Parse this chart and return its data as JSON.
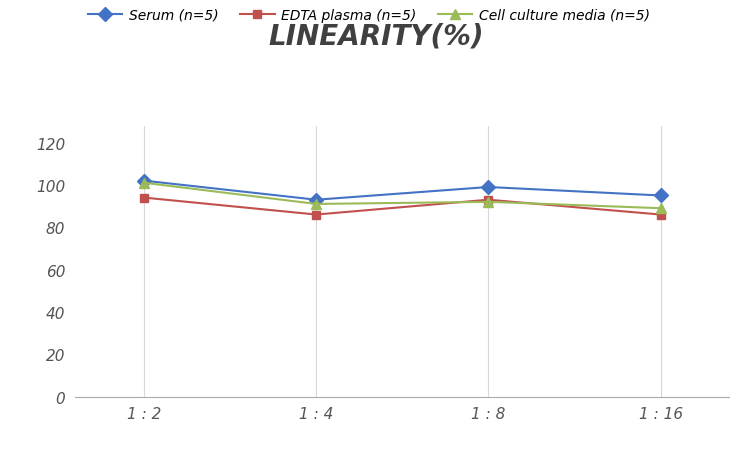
{
  "title": "LINEARITY(%)",
  "x_labels": [
    "1 : 2",
    "1 : 4",
    "1 : 8",
    "1 : 16"
  ],
  "x_positions": [
    0,
    1,
    2,
    3
  ],
  "series": [
    {
      "label": "Serum (n=5)",
      "values": [
        102,
        93,
        99,
        95
      ],
      "color": "#4472C4",
      "marker": "D",
      "marker_size": 7
    },
    {
      "label": "EDTA plasma (n=5)",
      "values": [
        94,
        86,
        93,
        86
      ],
      "color": "#C0504D",
      "marker": "s",
      "marker_size": 6
    },
    {
      "label": "Cell culture media (n=5)",
      "values": [
        101,
        91,
        92,
        89
      ],
      "color": "#9BBB59",
      "marker": "^",
      "marker_size": 7
    }
  ],
  "ylim": [
    0,
    128
  ],
  "yticks": [
    0,
    20,
    40,
    60,
    80,
    100,
    120
  ],
  "background_color": "#ffffff",
  "grid_color": "#d8d8d8",
  "title_fontsize": 20,
  "legend_fontsize": 10,
  "tick_fontsize": 11,
  "title_color": "#404040"
}
